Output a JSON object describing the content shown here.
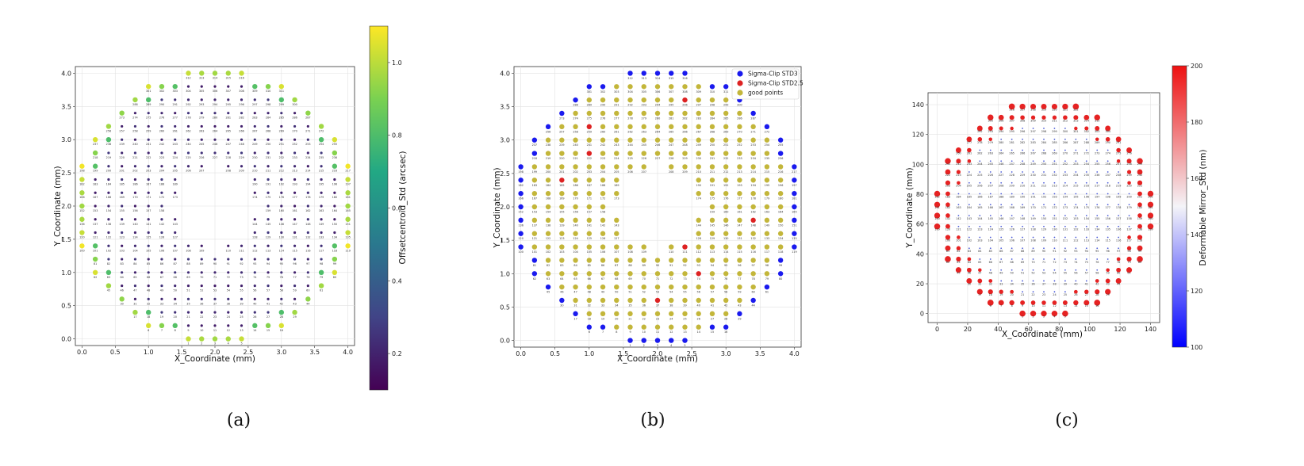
{
  "chart_data": [
    {
      "type": "scatter",
      "xlabel": "X_Coordinate (mm)",
      "ylabel": "Y_Coordinate (mm)",
      "xlim": [
        -0.1,
        4.1
      ],
      "ylim": [
        -0.1,
        4.1
      ],
      "xticks": [
        "0.0",
        "0.5",
        "1.0",
        "1.5",
        "2.0",
        "2.5",
        "3.0",
        "3.5",
        "4.0"
      ],
      "yticks": [
        "0.0",
        "0.5",
        "1.0",
        "1.5",
        "2.0",
        "2.5",
        "3.0",
        "3.5",
        "4.0"
      ],
      "grid": true,
      "colorbar": {
        "label": "Offsetcentroid_Std (arcsec)",
        "ticks": [
          "0.2",
          "0.4",
          "0.6",
          "0.8",
          "1.0"
        ],
        "range": [
          0.1,
          1.1
        ],
        "colormap": "viridis"
      },
      "panel_label": "(a)"
    },
    {
      "type": "scatter",
      "xlabel": "X_Coordinate (mm)",
      "ylabel": "Y_Coordinate (mm)",
      "xlim": [
        -0.1,
        4.1
      ],
      "ylim": [
        -0.1,
        4.1
      ],
      "xticks": [
        "0.0",
        "0.5",
        "1.0",
        "1.5",
        "2.0",
        "2.5",
        "3.0",
        "3.5",
        "4.0"
      ],
      "yticks": [
        "0.0",
        "0.5",
        "1.0",
        "1.5",
        "2.0",
        "2.5",
        "3.0",
        "3.5",
        "4.0"
      ],
      "grid": true,
      "legend": [
        {
          "name": "Sigma-Clip STD3",
          "color": "#1a1aee"
        },
        {
          "name": "Sigma-Clip STD2.5",
          "color": "#dd2222"
        },
        {
          "name": "good points",
          "color": "#c3b63a"
        }
      ],
      "legend_position": "top-right",
      "panel_label": "(b)"
    },
    {
      "type": "scatter",
      "xlabel": "X_Coordinate (mm)",
      "ylabel": "Y_Coordinate (mm)",
      "xlim": [
        -6,
        146
      ],
      "ylim": [
        -6,
        148
      ],
      "xticks": [
        "0",
        "20",
        "40",
        "60",
        "80",
        "100",
        "120",
        "140"
      ],
      "yticks": [
        "0",
        "20",
        "40",
        "60",
        "80",
        "100",
        "120",
        "140"
      ],
      "grid": true,
      "colorbar": {
        "label": "Deformable Mirror_Std (nm)",
        "ticks": [
          "100",
          "120",
          "140",
          "160",
          "180",
          "200"
        ],
        "range": [
          100,
          200
        ],
        "colormap": "bwr"
      },
      "panel_label": "(c)"
    }
  ]
}
